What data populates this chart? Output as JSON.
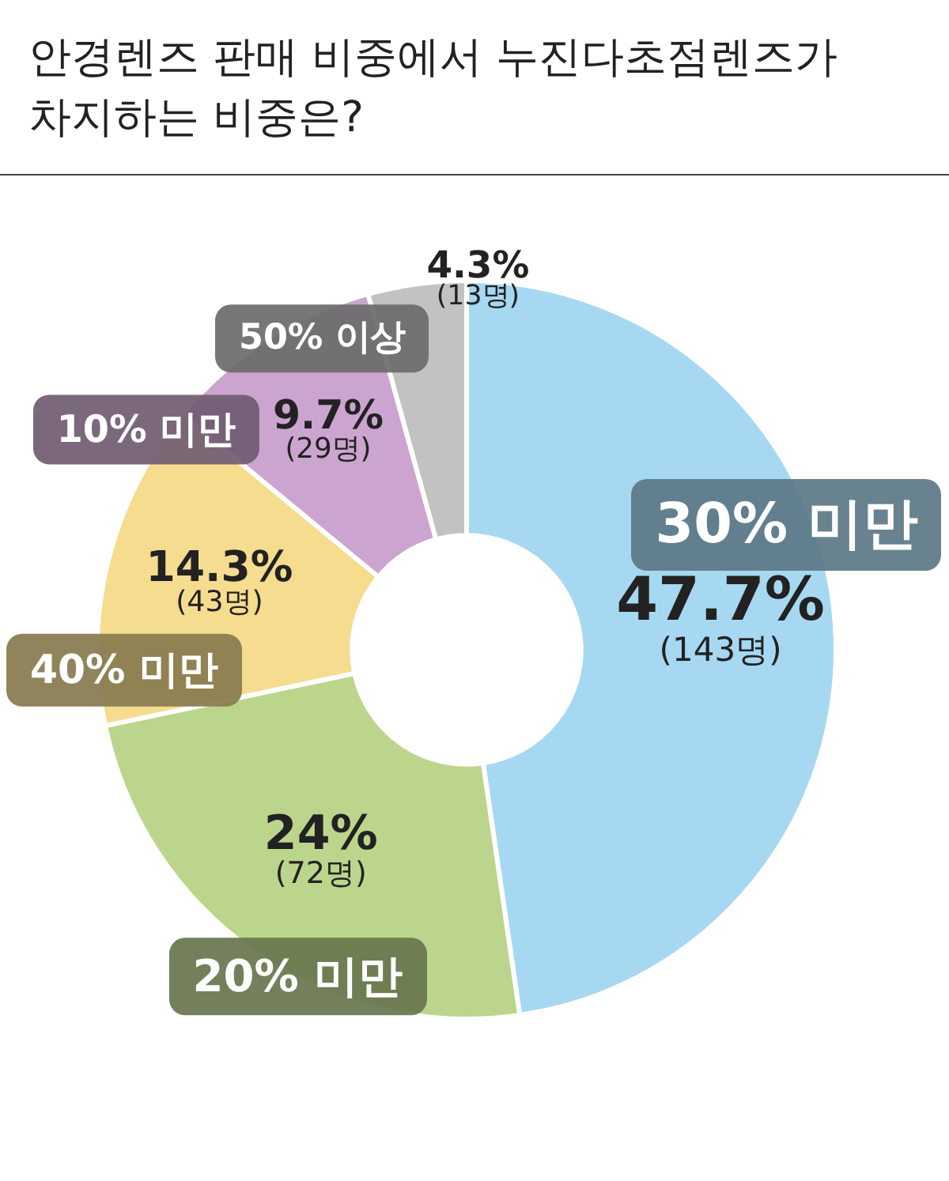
{
  "chart_data": {
    "type": "donut",
    "title": "안경렌즈 판매 비중에서 누진다초점렌즈가 차지하는 비중은?",
    "categories": [
      "30% 미만",
      "20% 미만",
      "40% 미만",
      "10% 미만",
      "50% 이상"
    ],
    "values": [
      47.7,
      24,
      14.3,
      9.7,
      4.3
    ],
    "colors": [
      "#a6d8f2",
      "#bcd58c",
      "#f6dc8e",
      "#cba5cf",
      "#c2c2c2"
    ],
    "value_labels": [
      "47.7%\n(143명)",
      "24%\n(72명)",
      "14.3%\n(43명)",
      "9.7%\n(29명)",
      "4.3%\n(13명)"
    ],
    "legend": false
  }
}
